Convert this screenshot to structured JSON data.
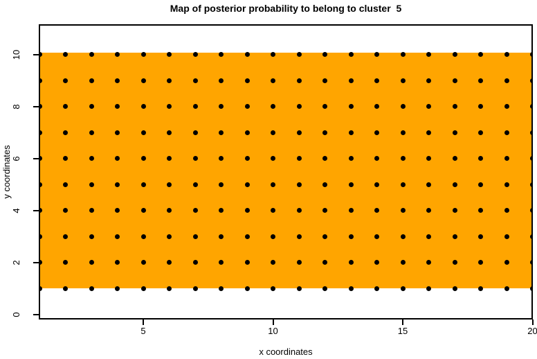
{
  "title": "Map of posterior probability to belong to cluster  5",
  "x_axis": {
    "label": "x coordinates",
    "ticks": [
      5,
      10,
      15,
      20
    ]
  },
  "y_axis": {
    "label": "y coordinates",
    "ticks": [
      0,
      2,
      4,
      6,
      8,
      10
    ]
  },
  "colors": {
    "region": "#FFA500",
    "point": "#000000",
    "axis": "#000000",
    "background": "#FFFFFF"
  },
  "chart_data": {
    "type": "heatmap",
    "title": "Map of posterior probability to belong to cluster  5",
    "cluster": "5",
    "xlabel": "x coordinates",
    "ylabel": "y coordinates",
    "x_ticks": [
      5,
      10,
      15,
      20
    ],
    "y_ticks": [
      0,
      2,
      4,
      6,
      8,
      10
    ],
    "xlim": [
      1,
      20
    ],
    "ylim": [
      0,
      11.3
    ],
    "grid_x": [
      1,
      2,
      3,
      4,
      5,
      6,
      7,
      8,
      9,
      10,
      11,
      12,
      13,
      14,
      15,
      16,
      17,
      18,
      19,
      20
    ],
    "grid_y": [
      1,
      2,
      3,
      4,
      5,
      6,
      7,
      8,
      9,
      10
    ],
    "region": {
      "x_range": [
        1,
        20
      ],
      "y_range": [
        1,
        10
      ],
      "color": "#FFA500",
      "note": "single uniform-color band; every cell of the 20x10 grid shares the same posterior-probability color"
    },
    "points": {
      "marker": "filled-circle",
      "color": "#000000",
      "description": "one black point at every integer (x, y) pair of grid_x by grid_y (200 points)"
    },
    "legend": "none",
    "grid": "off"
  }
}
